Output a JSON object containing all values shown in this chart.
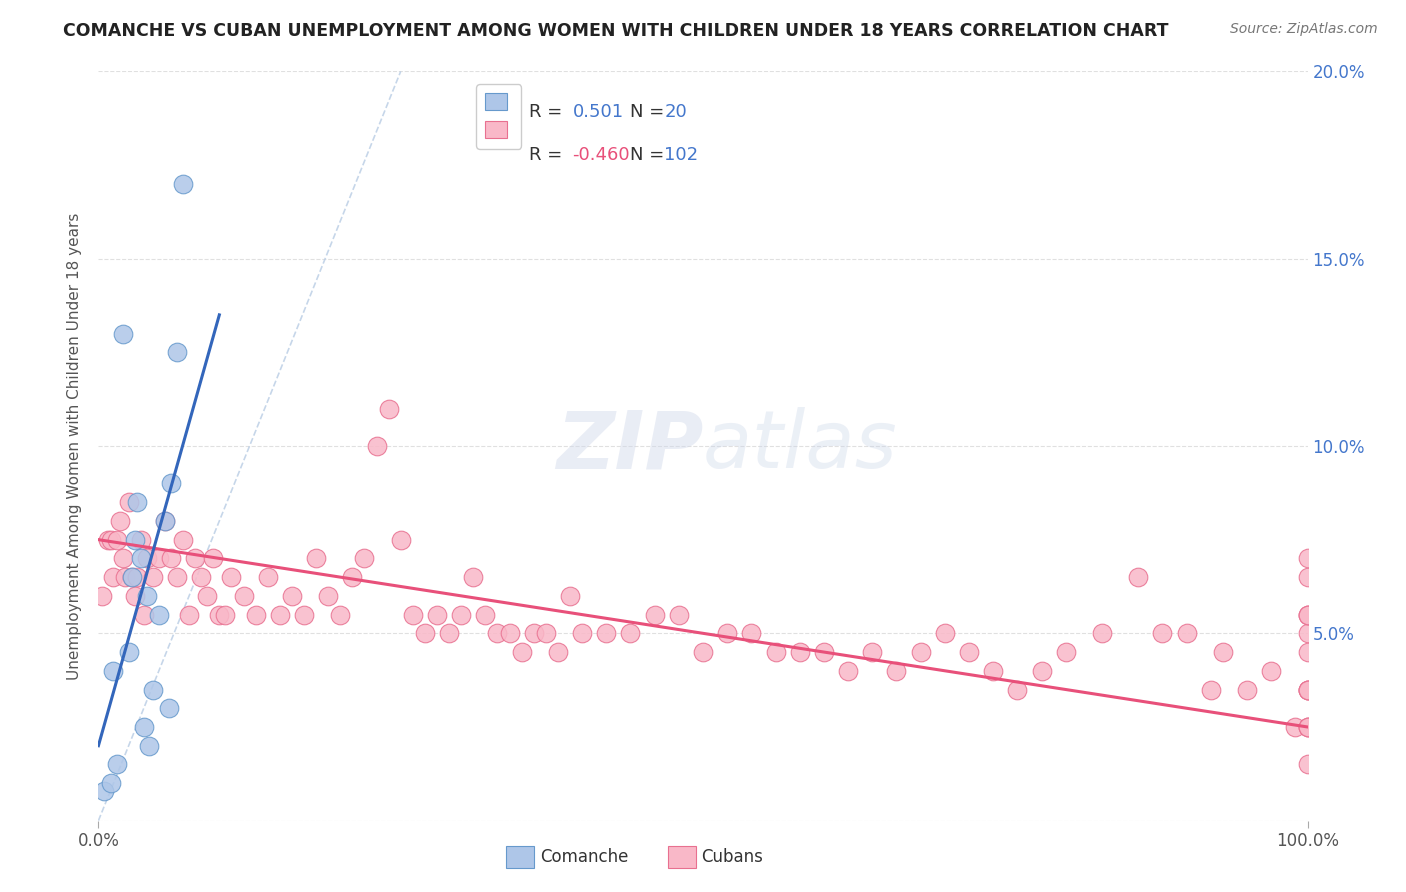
{
  "title": "COMANCHE VS CUBAN UNEMPLOYMENT AMONG WOMEN WITH CHILDREN UNDER 18 YEARS CORRELATION CHART",
  "source": "Source: ZipAtlas.com",
  "ylabel": "Unemployment Among Women with Children Under 18 years",
  "xlim": [
    0,
    100
  ],
  "ylim": [
    0,
    20
  ],
  "xticklabels": [
    "0.0%",
    "",
    "",
    "",
    "",
    "",
    "",
    "",
    "",
    "",
    "100.0%"
  ],
  "yticklabels_right": [
    "",
    "5.0%",
    "10.0%",
    "15.0%",
    "20.0%"
  ],
  "comanche_R": "0.501",
  "comanche_N": "20",
  "cubans_R": "-0.460",
  "cubans_N": "102",
  "watermark_text": "ZIPatlas",
  "comanche_color": "#aec6e8",
  "comanche_edge_color": "#6699cc",
  "comanche_line_color": "#3366bb",
  "cubans_color": "#f9b8c8",
  "cubans_edge_color": "#e87090",
  "cubans_line_color": "#e8507a",
  "diag_line_color": "#b8cce4",
  "grid_color": "#dddddd",
  "title_color": "#222222",
  "source_color": "#777777",
  "ylabel_color": "#555555",
  "tick_color": "#555555",
  "right_tick_color": "#4477cc",
  "legend_R_color": "#4477cc",
  "legend_N_color": "#4477cc",
  "legend_R_neg_color": "#e8507a",
  "comanche_x": [
    0.5,
    1.0,
    1.2,
    1.5,
    2.0,
    2.5,
    2.8,
    3.0,
    3.2,
    3.5,
    3.8,
    4.0,
    4.2,
    4.5,
    5.0,
    5.5,
    5.8,
    6.0,
    6.5,
    7.0
  ],
  "comanche_y": [
    0.8,
    1.0,
    4.0,
    1.5,
    13.0,
    4.5,
    6.5,
    7.5,
    8.5,
    7.0,
    2.5,
    6.0,
    2.0,
    3.5,
    5.5,
    8.0,
    3.0,
    9.0,
    12.5,
    17.0
  ],
  "cubans_x": [
    0.3,
    0.8,
    1.0,
    1.2,
    1.5,
    1.8,
    2.0,
    2.2,
    2.5,
    2.8,
    3.0,
    3.2,
    3.5,
    3.8,
    4.0,
    4.5,
    5.0,
    5.5,
    6.0,
    6.5,
    7.0,
    7.5,
    8.0,
    8.5,
    9.0,
    9.5,
    10.0,
    10.5,
    11.0,
    12.0,
    13.0,
    14.0,
    15.0,
    16.0,
    17.0,
    18.0,
    19.0,
    20.0,
    21.0,
    22.0,
    23.0,
    24.0,
    25.0,
    26.0,
    27.0,
    28.0,
    29.0,
    30.0,
    31.0,
    32.0,
    33.0,
    34.0,
    35.0,
    36.0,
    37.0,
    38.0,
    39.0,
    40.0,
    42.0,
    44.0,
    46.0,
    48.0,
    50.0,
    52.0,
    54.0,
    56.0,
    58.0,
    60.0,
    62.0,
    64.0,
    66.0,
    68.0,
    70.0,
    72.0,
    74.0,
    76.0,
    78.0,
    80.0,
    83.0,
    86.0,
    88.0,
    90.0,
    92.0,
    93.0,
    95.0,
    97.0,
    99.0,
    100.0,
    100.0,
    100.0,
    100.0,
    100.0,
    100.0,
    100.0,
    100.0,
    100.0,
    100.0,
    100.0,
    100.0,
    100.0,
    100.0,
    100.0
  ],
  "cubans_y": [
    6.0,
    7.5,
    7.5,
    6.5,
    7.5,
    8.0,
    7.0,
    6.5,
    8.5,
    6.5,
    6.0,
    6.5,
    7.5,
    5.5,
    7.0,
    6.5,
    7.0,
    8.0,
    7.0,
    6.5,
    7.5,
    5.5,
    7.0,
    6.5,
    6.0,
    7.0,
    5.5,
    5.5,
    6.5,
    6.0,
    5.5,
    6.5,
    5.5,
    6.0,
    5.5,
    7.0,
    6.0,
    5.5,
    6.5,
    7.0,
    10.0,
    11.0,
    7.5,
    5.5,
    5.0,
    5.5,
    5.0,
    5.5,
    6.5,
    5.5,
    5.0,
    5.0,
    4.5,
    5.0,
    5.0,
    4.5,
    6.0,
    5.0,
    5.0,
    5.0,
    5.5,
    5.5,
    4.5,
    5.0,
    5.0,
    4.5,
    4.5,
    4.5,
    4.0,
    4.5,
    4.0,
    4.5,
    5.0,
    4.5,
    4.0,
    3.5,
    4.0,
    4.5,
    5.0,
    6.5,
    5.0,
    5.0,
    3.5,
    4.5,
    3.5,
    4.0,
    2.5,
    2.5,
    3.5,
    5.0,
    4.5,
    3.5,
    3.5,
    5.5,
    5.5,
    6.5,
    7.0,
    3.5,
    5.5,
    2.5,
    2.5,
    1.5
  ]
}
